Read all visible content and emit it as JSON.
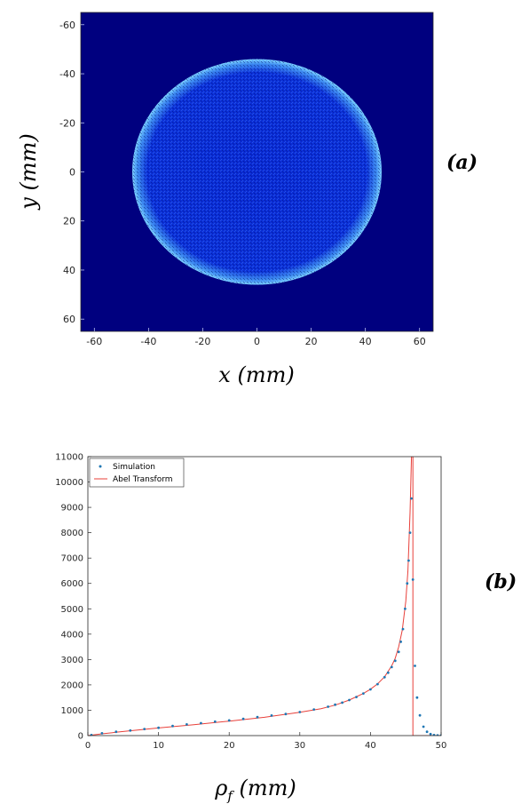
{
  "chart_data": [
    {
      "type": "heatmap",
      "panel_label": "(a)",
      "xlabel": "x (mm)",
      "ylabel": "y (mm)",
      "xlim": [
        -65,
        65
      ],
      "ylim": [
        -65,
        65
      ],
      "y_reversed": true,
      "x_ticks": [
        -60,
        -40,
        -20,
        0,
        20,
        40,
        60
      ],
      "y_ticks": [
        -60,
        -40,
        -20,
        0,
        20,
        40,
        60
      ],
      "background_color": "#00007f",
      "disk_color": "#0a2ad4",
      "rim_color": "#7fd4ff",
      "disk": {
        "center": [
          0,
          0
        ],
        "radius": 46
      }
    },
    {
      "type": "line",
      "panel_label": "(b)",
      "xlabel": "ρf (mm)",
      "ylabel": "",
      "xlim": [
        0,
        50
      ],
      "ylim": [
        0,
        11000
      ],
      "x_ticks": [
        0,
        10,
        20,
        30,
        40,
        50
      ],
      "y_ticks": [
        0,
        1000,
        2000,
        3000,
        4000,
        5000,
        6000,
        7000,
        8000,
        9000,
        10000,
        11000
      ],
      "legend": {
        "position": "top-left"
      },
      "series": [
        {
          "name": "Simulation",
          "style": "markers",
          "color": "#1f77b4",
          "x": [
            0.5,
            2,
            4,
            6,
            8,
            10,
            12,
            14,
            16,
            18,
            20,
            22,
            24,
            26,
            28,
            30,
            32,
            34,
            35,
            36,
            37,
            38,
            39,
            40,
            41,
            42,
            42.5,
            43,
            43.5,
            44,
            44.3,
            44.6,
            44.9,
            45.2,
            45.4,
            45.6,
            45.8,
            46,
            46.3,
            46.6,
            47,
            47.5,
            48,
            48.5,
            49,
            49.5,
            50
          ],
          "y": [
            20,
            90,
            150,
            200,
            260,
            310,
            380,
            440,
            490,
            550,
            600,
            660,
            730,
            790,
            850,
            930,
            1030,
            1140,
            1220,
            1300,
            1400,
            1520,
            1660,
            1820,
            2030,
            2300,
            2480,
            2700,
            2950,
            3300,
            3700,
            4200,
            5000,
            6000,
            6900,
            8000,
            9350,
            6150,
            2750,
            1500,
            800,
            350,
            150,
            60,
            20,
            8,
            2
          ]
        },
        {
          "name": "Abel Transform",
          "style": "line",
          "color": "#e8403a",
          "x": [
            0,
            2,
            5,
            10,
            15,
            20,
            25,
            30,
            33,
            35,
            37,
            39,
            40,
            41,
            42,
            43,
            43.5,
            44,
            44.5,
            45,
            45.3,
            45.6,
            45.8,
            45.9,
            46,
            46,
            50
          ],
          "y": [
            0,
            70,
            160,
            300,
            430,
            570,
            720,
            920,
            1060,
            1200,
            1400,
            1660,
            1830,
            2040,
            2320,
            2750,
            3050,
            3500,
            4150,
            5300,
            6500,
            8800,
            11000,
            11000,
            11000,
            0,
            0
          ]
        }
      ]
    }
  ]
}
